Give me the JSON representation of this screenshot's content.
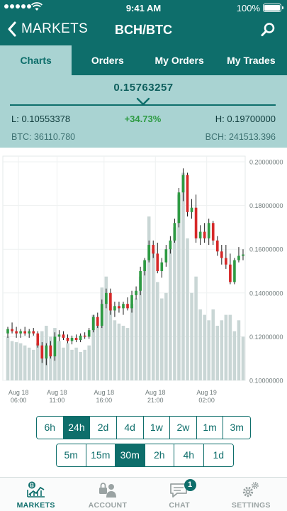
{
  "status_bar": {
    "time": "9:41 AM",
    "battery": "100%"
  },
  "nav": {
    "back_label": "MARKETS",
    "title": "BCH/BTC"
  },
  "tabs": [
    {
      "label": "Charts",
      "active": true
    },
    {
      "label": "Orders",
      "active": false
    },
    {
      "label": "My Orders",
      "active": false
    },
    {
      "label": "My Trades",
      "active": false
    }
  ],
  "price": {
    "last": "0.15763257",
    "low": "L: 0.10553378",
    "change": "+34.73%",
    "high": "H: 0.19700000",
    "btc_volume": "BTC: 36110.780",
    "bch_volume": "BCH: 241513.396"
  },
  "colors": {
    "primary": "#0e6e6b",
    "panel": "#a9d3d2",
    "up": "#2e9b43",
    "down": "#d62828",
    "volume": "#c9d6d5"
  },
  "chart_data": {
    "type": "candlestick",
    "ylim": [
      0.1,
      0.2
    ],
    "ytick_labels": [
      "0.20000000",
      "0.18000000",
      "0.16000000",
      "0.14000000",
      "0.12000000",
      "0.10000000"
    ],
    "yticks": [
      0.2,
      0.18,
      0.16,
      0.14,
      0.12,
      0.1
    ],
    "xtick_labels": [
      {
        "line1": "Aug 18",
        "line2": "06:00",
        "index": 2.5
      },
      {
        "line1": "Aug 18",
        "line2": "11:00",
        "index": 11.5
      },
      {
        "line1": "Aug 18",
        "line2": "16:00",
        "index": 22.5
      },
      {
        "line1": "Aug 18",
        "line2": "21:00",
        "index": 34.5
      },
      {
        "line1": "Aug 19",
        "line2": "02:00",
        "index": 46.5
      }
    ],
    "volume_max": 0.2,
    "candles": [
      {
        "o": 0.1215,
        "h": 0.1245,
        "l": 0.1195,
        "c": 0.1235,
        "v": 0.04
      },
      {
        "o": 0.1235,
        "h": 0.1265,
        "l": 0.1215,
        "c": 0.1225,
        "v": 0.036
      },
      {
        "o": 0.1225,
        "h": 0.1245,
        "l": 0.1195,
        "c": 0.1215,
        "v": 0.035
      },
      {
        "o": 0.1215,
        "h": 0.1235,
        "l": 0.1195,
        "c": 0.1225,
        "v": 0.034
      },
      {
        "o": 0.1225,
        "h": 0.1245,
        "l": 0.1205,
        "c": 0.1215,
        "v": 0.032
      },
      {
        "o": 0.1215,
        "h": 0.1235,
        "l": 0.1195,
        "c": 0.1225,
        "v": 0.03
      },
      {
        "o": 0.1225,
        "h": 0.124,
        "l": 0.1205,
        "c": 0.1215,
        "v": 0.028
      },
      {
        "o": 0.1215,
        "h": 0.1225,
        "l": 0.115,
        "c": 0.116,
        "v": 0.034
      },
      {
        "o": 0.116,
        "h": 0.1175,
        "l": 0.108,
        "c": 0.11,
        "v": 0.045
      },
      {
        "o": 0.11,
        "h": 0.117,
        "l": 0.107,
        "c": 0.116,
        "v": 0.05
      },
      {
        "o": 0.116,
        "h": 0.118,
        "l": 0.11,
        "c": 0.111,
        "v": 0.04
      },
      {
        "o": 0.111,
        "h": 0.122,
        "l": 0.109,
        "c": 0.12,
        "v": 0.048
      },
      {
        "o": 0.12,
        "h": 0.123,
        "l": 0.118,
        "c": 0.121,
        "v": 0.036
      },
      {
        "o": 0.121,
        "h": 0.1225,
        "l": 0.1185,
        "c": 0.1195,
        "v": 0.03
      },
      {
        "o": 0.1195,
        "h": 0.121,
        "l": 0.117,
        "c": 0.118,
        "v": 0.034
      },
      {
        "o": 0.118,
        "h": 0.1205,
        "l": 0.1165,
        "c": 0.1195,
        "v": 0.028
      },
      {
        "o": 0.1195,
        "h": 0.121,
        "l": 0.1175,
        "c": 0.1185,
        "v": 0.03
      },
      {
        "o": 0.1185,
        "h": 0.1215,
        "l": 0.1175,
        "c": 0.1205,
        "v": 0.026
      },
      {
        "o": 0.1205,
        "h": 0.122,
        "l": 0.119,
        "c": 0.12,
        "v": 0.028
      },
      {
        "o": 0.12,
        "h": 0.124,
        "l": 0.119,
        "c": 0.123,
        "v": 0.032
      },
      {
        "o": 0.123,
        "h": 0.13,
        "l": 0.122,
        "c": 0.129,
        "v": 0.06
      },
      {
        "o": 0.129,
        "h": 0.131,
        "l": 0.124,
        "c": 0.125,
        "v": 0.05
      },
      {
        "o": 0.125,
        "h": 0.137,
        "l": 0.124,
        "c": 0.135,
        "v": 0.085
      },
      {
        "o": 0.135,
        "h": 0.142,
        "l": 0.133,
        "c": 0.14,
        "v": 0.095
      },
      {
        "o": 0.14,
        "h": 0.142,
        "l": 0.13,
        "c": 0.132,
        "v": 0.07
      },
      {
        "o": 0.132,
        "h": 0.136,
        "l": 0.129,
        "c": 0.134,
        "v": 0.055
      },
      {
        "o": 0.134,
        "h": 0.136,
        "l": 0.131,
        "c": 0.133,
        "v": 0.052
      },
      {
        "o": 0.133,
        "h": 0.136,
        "l": 0.13,
        "c": 0.135,
        "v": 0.05
      },
      {
        "o": 0.135,
        "h": 0.138,
        "l": 0.132,
        "c": 0.133,
        "v": 0.048
      },
      {
        "o": 0.133,
        "h": 0.141,
        "l": 0.131,
        "c": 0.139,
        "v": 0.07
      },
      {
        "o": 0.139,
        "h": 0.143,
        "l": 0.137,
        "c": 0.141,
        "v": 0.075
      },
      {
        "o": 0.141,
        "h": 0.152,
        "l": 0.139,
        "c": 0.15,
        "v": 0.095
      },
      {
        "o": 0.15,
        "h": 0.156,
        "l": 0.148,
        "c": 0.155,
        "v": 0.11
      },
      {
        "o": 0.155,
        "h": 0.164,
        "l": 0.154,
        "c": 0.162,
        "v": 0.15
      },
      {
        "o": 0.162,
        "h": 0.164,
        "l": 0.156,
        "c": 0.158,
        "v": 0.12
      },
      {
        "o": 0.158,
        "h": 0.163,
        "l": 0.149,
        "c": 0.15,
        "v": 0.09
      },
      {
        "o": 0.15,
        "h": 0.156,
        "l": 0.147,
        "c": 0.154,
        "v": 0.075
      },
      {
        "o": 0.154,
        "h": 0.162,
        "l": 0.152,
        "c": 0.16,
        "v": 0.08
      },
      {
        "o": 0.16,
        "h": 0.166,
        "l": 0.158,
        "c": 0.164,
        "v": 0.12
      },
      {
        "o": 0.164,
        "h": 0.174,
        "l": 0.163,
        "c": 0.172,
        "v": 0.14
      },
      {
        "o": 0.172,
        "h": 0.188,
        "l": 0.17,
        "c": 0.186,
        "v": 0.17
      },
      {
        "o": 0.186,
        "h": 0.197,
        "l": 0.182,
        "c": 0.194,
        "v": 0.19
      },
      {
        "o": 0.194,
        "h": 0.195,
        "l": 0.175,
        "c": 0.177,
        "v": 0.13
      },
      {
        "o": 0.177,
        "h": 0.183,
        "l": 0.174,
        "c": 0.179,
        "v": 0.08
      },
      {
        "o": 0.179,
        "h": 0.185,
        "l": 0.163,
        "c": 0.165,
        "v": 0.095
      },
      {
        "o": 0.165,
        "h": 0.171,
        "l": 0.162,
        "c": 0.168,
        "v": 0.065
      },
      {
        "o": 0.168,
        "h": 0.172,
        "l": 0.163,
        "c": 0.165,
        "v": 0.06
      },
      {
        "o": 0.165,
        "h": 0.174,
        "l": 0.162,
        "c": 0.172,
        "v": 0.055
      },
      {
        "o": 0.172,
        "h": 0.173,
        "l": 0.162,
        "c": 0.164,
        "v": 0.065
      },
      {
        "o": 0.164,
        "h": 0.166,
        "l": 0.157,
        "c": 0.159,
        "v": 0.05
      },
      {
        "o": 0.159,
        "h": 0.162,
        "l": 0.153,
        "c": 0.156,
        "v": 0.055
      },
      {
        "o": 0.156,
        "h": 0.162,
        "l": 0.151,
        "c": 0.153,
        "v": 0.06
      },
      {
        "o": 0.153,
        "h": 0.158,
        "l": 0.144,
        "c": 0.145,
        "v": 0.06
      },
      {
        "o": 0.145,
        "h": 0.156,
        "l": 0.144,
        "c": 0.155,
        "v": 0.045
      },
      {
        "o": 0.155,
        "h": 0.161,
        "l": 0.154,
        "c": 0.157,
        "v": 0.055
      },
      {
        "o": 0.157,
        "h": 0.16,
        "l": 0.155,
        "c": 0.1576,
        "v": 0.04
      }
    ]
  },
  "intervals_row1": [
    {
      "label": "6h",
      "active": false
    },
    {
      "label": "24h",
      "active": true
    },
    {
      "label": "2d",
      "active": false
    },
    {
      "label": "4d",
      "active": false
    },
    {
      "label": "1w",
      "active": false
    },
    {
      "label": "2w",
      "active": false
    },
    {
      "label": "1m",
      "active": false
    },
    {
      "label": "3m",
      "active": false
    }
  ],
  "intervals_row2": [
    {
      "label": "5m",
      "active": false
    },
    {
      "label": "15m",
      "active": false
    },
    {
      "label": "30m",
      "active": true
    },
    {
      "label": "2h",
      "active": false
    },
    {
      "label": "4h",
      "active": false
    },
    {
      "label": "1d",
      "active": false
    }
  ],
  "tabbar": {
    "markets": "MARKETS",
    "account": "ACCOUNT",
    "chat": "CHAT",
    "chat_badge": "1",
    "settings": "SETTINGS"
  }
}
